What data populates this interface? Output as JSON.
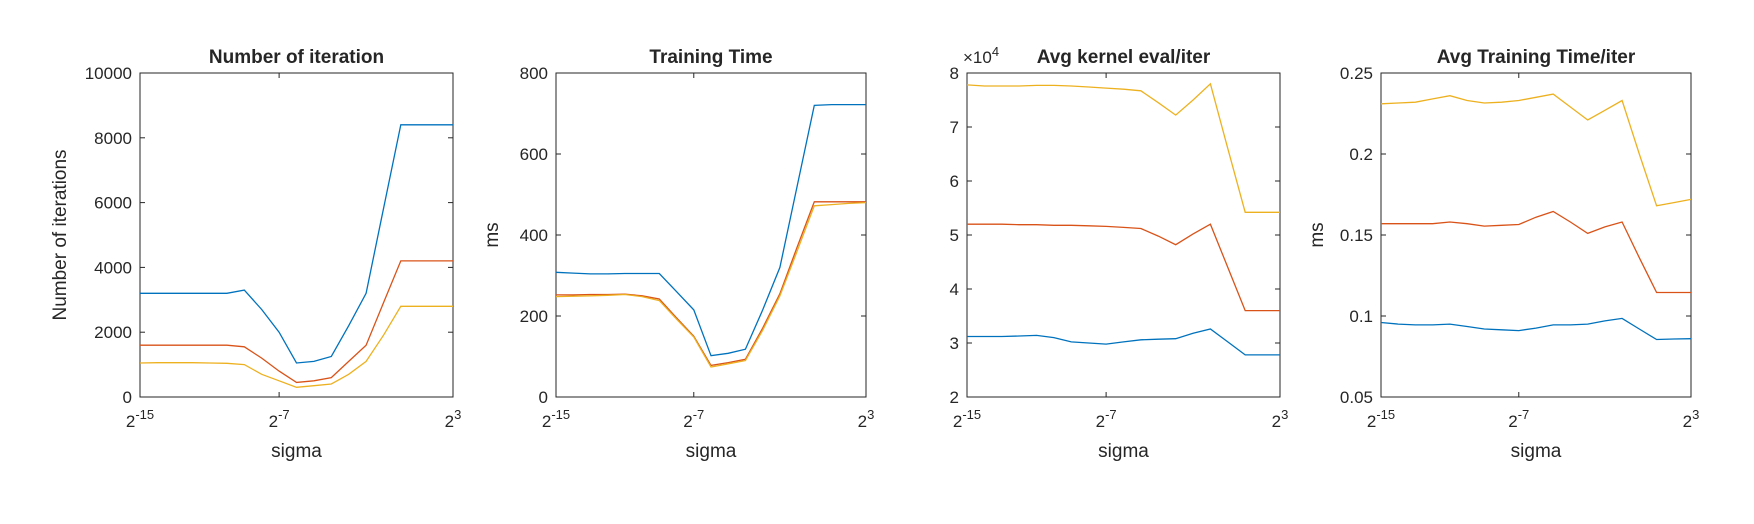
{
  "chart_data": [
    {
      "type": "line",
      "title": "Number of iteration",
      "xlabel": "sigma",
      "ylabel": "Number of iterations",
      "exponent": "",
      "x": [
        -15,
        -14,
        -13,
        -12,
        -11,
        -10,
        -9,
        -8,
        -7,
        -6,
        -5,
        -4,
        -3,
        -2,
        -1,
        0,
        1,
        2,
        3
      ],
      "xticks": [
        {
          "v": -15,
          "base": "2",
          "exp": "-15"
        },
        {
          "v": -7,
          "base": "2",
          "exp": "-7"
        },
        {
          "v": 3,
          "base": "2",
          "exp": "3"
        }
      ],
      "ylim": [
        0,
        10000
      ],
      "yticks": [
        "0",
        "2000",
        "4000",
        "6000",
        "8000",
        "10000"
      ],
      "series": [
        {
          "color": "#0072BD",
          "values": [
            3200,
            3200,
            3200,
            3200,
            3200,
            3200,
            3300,
            2700,
            2000,
            1050,
            1100,
            1250,
            2200,
            3200,
            5800,
            8400,
            8400,
            8400,
            8400
          ]
        },
        {
          "color": "#D95319",
          "values": [
            1600,
            1600,
            1600,
            1600,
            1600,
            1600,
            1550,
            1200,
            800,
            450,
            500,
            600,
            1100,
            1600,
            2900,
            4200,
            4200,
            4200,
            4200
          ]
        },
        {
          "color": "#EDB120",
          "values": [
            1050,
            1060,
            1060,
            1060,
            1050,
            1040,
            1000,
            700,
            500,
            300,
            350,
            400,
            700,
            1100,
            1900,
            2800,
            2800,
            2800,
            2800
          ]
        }
      ]
    },
    {
      "type": "line",
      "title": "Training Time",
      "xlabel": "sigma",
      "ylabel": "ms",
      "exponent": "",
      "x": [
        -15,
        -14,
        -13,
        -12,
        -11,
        -10,
        -9,
        -8,
        -7,
        -6,
        -5,
        -4,
        -3,
        -2,
        -1,
        0,
        1,
        2,
        3
      ],
      "xticks": [
        {
          "v": -15,
          "base": "2",
          "exp": "-15"
        },
        {
          "v": -7,
          "base": "2",
          "exp": "-7"
        },
        {
          "v": 3,
          "base": "2",
          "exp": "3"
        }
      ],
      "ylim": [
        0,
        800
      ],
      "yticks": [
        "0",
        "200",
        "400",
        "600",
        "800"
      ],
      "series": [
        {
          "color": "#0072BD",
          "values": [
            308,
            306,
            304,
            304,
            305,
            305,
            305,
            260,
            215,
            102,
            108,
            118,
            215,
            320,
            520,
            720,
            722,
            722,
            722
          ]
        },
        {
          "color": "#D95319",
          "values": [
            252,
            252,
            253,
            253,
            254,
            250,
            242,
            195,
            150,
            78,
            85,
            93,
            170,
            255,
            370,
            482,
            482,
            482,
            482
          ]
        },
        {
          "color": "#EDB120",
          "values": [
            248,
            249,
            250,
            251,
            253,
            248,
            238,
            192,
            148,
            74,
            82,
            90,
            165,
            250,
            360,
            472,
            475,
            478,
            480
          ]
        }
      ]
    },
    {
      "type": "line",
      "title": "Avg kernel eval/iter",
      "xlabel": "sigma",
      "ylabel": "",
      "exponent": "4",
      "x": [
        -15,
        -14,
        -13,
        -12,
        -11,
        -10,
        -9,
        -8,
        -7,
        -6,
        -5,
        -4,
        -3,
        -2,
        -1,
        0,
        1,
        2,
        3
      ],
      "xticks": [
        {
          "v": -15,
          "base": "2",
          "exp": "-15"
        },
        {
          "v": -7,
          "base": "2",
          "exp": "-7"
        },
        {
          "v": 3,
          "base": "2",
          "exp": "3"
        }
      ],
      "ylim": [
        2,
        8
      ],
      "yticks": [
        "2",
        "3",
        "4",
        "5",
        "6",
        "7",
        "8"
      ],
      "series": [
        {
          "color": "#0072BD",
          "values": [
            3.12,
            3.12,
            3.12,
            3.13,
            3.14,
            3.1,
            3.02,
            3.0,
            2.98,
            3.02,
            3.06,
            3.07,
            3.08,
            3.18,
            3.26,
            3.02,
            2.78,
            2.78,
            2.78
          ]
        },
        {
          "color": "#D95319",
          "values": [
            5.2,
            5.2,
            5.2,
            5.19,
            5.19,
            5.18,
            5.18,
            5.17,
            5.16,
            5.14,
            5.12,
            4.98,
            4.82,
            5.02,
            5.2,
            4.4,
            3.6,
            3.6,
            3.6
          ]
        },
        {
          "color": "#EDB120",
          "values": [
            7.78,
            7.76,
            7.76,
            7.76,
            7.77,
            7.77,
            7.76,
            7.74,
            7.72,
            7.7,
            7.67,
            7.45,
            7.22,
            7.5,
            7.8,
            6.6,
            5.42,
            5.42,
            5.42
          ]
        }
      ]
    },
    {
      "type": "line",
      "title": "Avg Training Time/iter",
      "xlabel": "sigma",
      "ylabel": "ms",
      "exponent": "",
      "x": [
        -15,
        -14,
        -13,
        -12,
        -11,
        -10,
        -9,
        -8,
        -7,
        -6,
        -5,
        -4,
        -3,
        -2,
        -1,
        0,
        1,
        2,
        3
      ],
      "xticks": [
        {
          "v": -15,
          "base": "2",
          "exp": "-15"
        },
        {
          "v": -7,
          "base": "2",
          "exp": "-7"
        },
        {
          "v": 3,
          "base": "2",
          "exp": "3"
        }
      ],
      "ylim": [
        0.05,
        0.25
      ],
      "yticks": [
        "0.05",
        "0.1",
        "0.15",
        "0.2",
        "0.25"
      ],
      "series": [
        {
          "color": "#0072BD",
          "values": [
            0.096,
            0.095,
            0.0945,
            0.0945,
            0.095,
            0.0935,
            0.092,
            0.0915,
            0.091,
            0.0925,
            0.0945,
            0.0945,
            0.095,
            0.097,
            0.0985,
            0.092,
            0.0855,
            0.0858,
            0.086
          ]
        },
        {
          "color": "#D95319",
          "values": [
            0.157,
            0.157,
            0.157,
            0.157,
            0.158,
            0.157,
            0.1555,
            0.156,
            0.1565,
            0.161,
            0.1645,
            0.158,
            0.151,
            0.155,
            0.158,
            0.136,
            0.1145,
            0.1145,
            0.1145
          ]
        },
        {
          "color": "#EDB120",
          "values": [
            0.231,
            0.2315,
            0.232,
            0.234,
            0.236,
            0.233,
            0.2315,
            0.232,
            0.233,
            0.235,
            0.237,
            0.229,
            0.221,
            0.227,
            0.233,
            0.2,
            0.168,
            0.17,
            0.172
          ]
        }
      ]
    }
  ]
}
